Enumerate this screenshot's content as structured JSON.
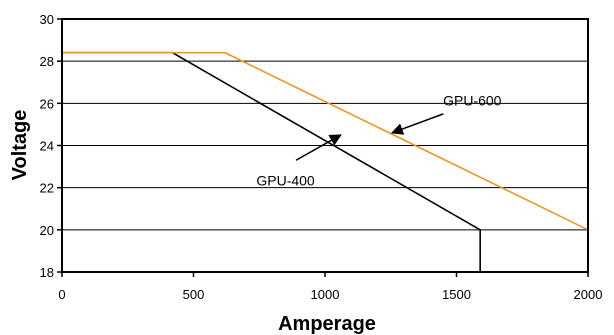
{
  "chart_data": {
    "type": "line",
    "title": "",
    "xlabel": "Amperage",
    "ylabel": "Voltage",
    "xlim": [
      0,
      2000
    ],
    "ylim": [
      18,
      30
    ],
    "xticks": [
      0,
      500,
      1000,
      1500,
      2000
    ],
    "yticks": [
      18,
      20,
      22,
      24,
      26,
      28,
      30
    ],
    "grid": "horizontal",
    "series": [
      {
        "name": "GPU-400",
        "color": "#000000",
        "x": [
          0,
          420,
          1590,
          1590
        ],
        "y": [
          28.4,
          28.4,
          20,
          18
        ]
      },
      {
        "name": "GPU-600",
        "color": "#f0961e",
        "x": [
          0,
          620,
          2000,
          2000
        ],
        "y": [
          28.4,
          28.4,
          20,
          18
        ]
      }
    ],
    "annotations": [
      {
        "text": "GPU-400",
        "series": 0,
        "label_at": [
          850,
          22.1
        ],
        "arrow_from": [
          890,
          23.3
        ],
        "arrow_to": [
          1060,
          24.5
        ]
      },
      {
        "text": "GPU-600",
        "series": 1,
        "label_at": [
          1560,
          25.9
        ],
        "arrow_from": [
          1450,
          25.5
        ],
        "arrow_to": [
          1255,
          24.6
        ]
      }
    ]
  }
}
